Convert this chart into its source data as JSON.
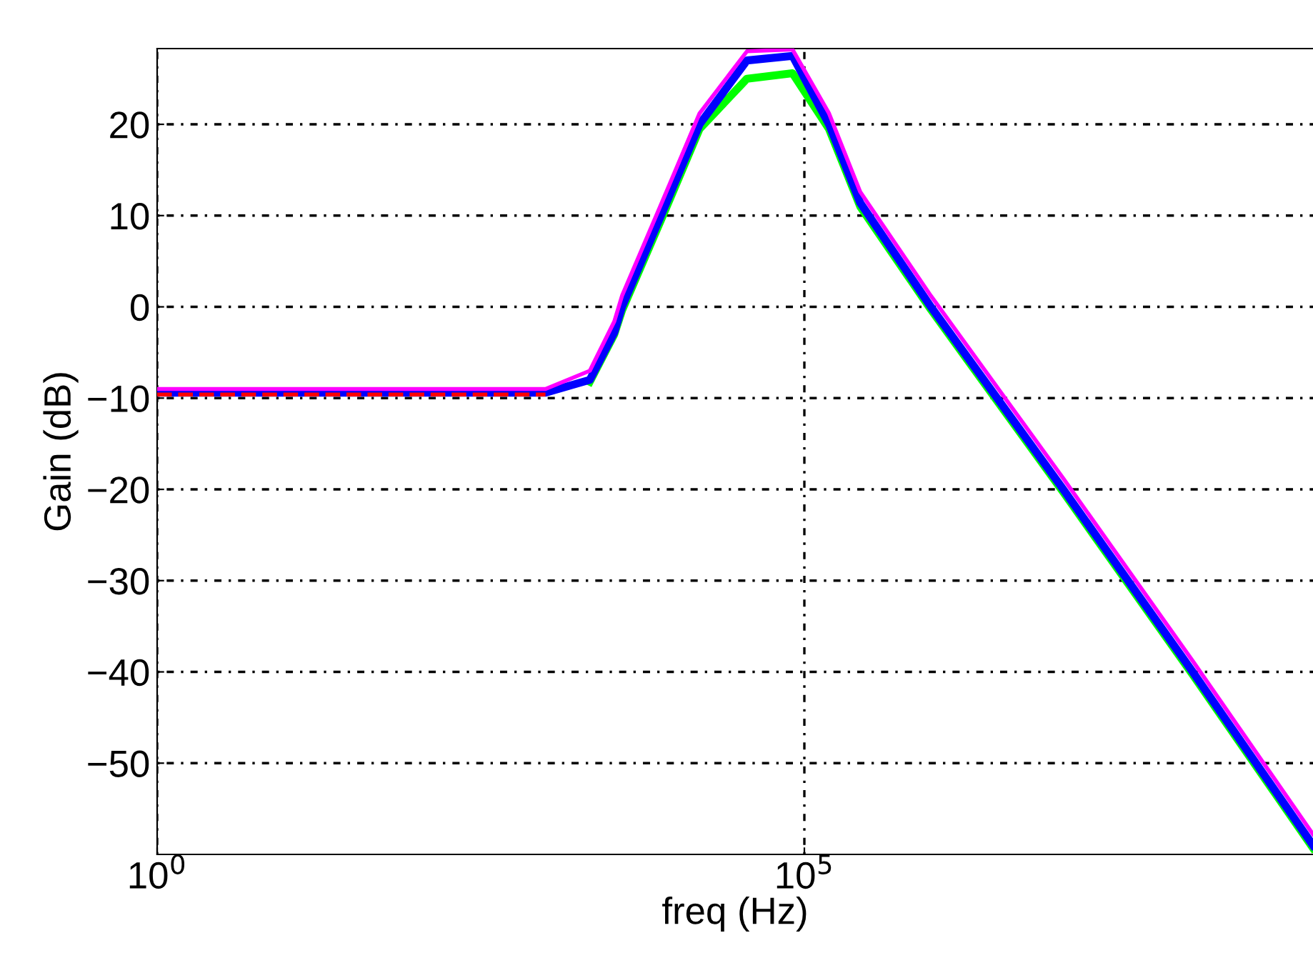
{
  "chart_data": {
    "type": "line",
    "xlabel": "freq (Hz)",
    "ylabel": "Gain (dB)",
    "log": "x",
    "x": [
      1,
      1000,
      2200,
      3400,
      3900,
      7800,
      15500,
      36000,
      81000,
      155000,
      270000,
      950000,
      10000000,
      100000000,
      850000000
    ],
    "series": [
      {
        "color": "#00ff00",
        "values": [
          null,
          null,
          -8.2,
          -3,
          -0.4,
          9.5,
          19.5,
          25,
          25.6,
          19.5,
          11,
          -0.3,
          -20.3,
          -40.3,
          -59.3
        ]
      },
      {
        "color": "#0000ff",
        "values": [
          -9.4,
          -9.4,
          -8,
          -2.8,
          0,
          10,
          20,
          27,
          27.5,
          20,
          11.4,
          0,
          -20,
          -40,
          -59
        ]
      },
      {
        "color": "#ff00ff",
        "values": [
          -9,
          -9,
          -7,
          -1.6,
          1.2,
          11.2,
          21.2,
          28,
          28.2,
          21.2,
          12.6,
          1.2,
          -18.8,
          -38.8,
          -57.8
        ]
      },
      {
        "color": "#ff0000",
        "line_style": "dashed",
        "values": [
          -9.6,
          -9.6,
          null,
          null,
          null,
          null,
          null,
          null,
          null,
          null,
          null,
          null,
          null,
          null,
          null
        ]
      }
    ],
    "xlim": [
      1,
      850000000
    ],
    "xticks": [
      {
        "value": 1,
        "label": "10$^{0}$"
      },
      {
        "value": 100000,
        "label": "10$^{5}$"
      }
    ],
    "ylim": [
      -60,
      28.3
    ],
    "yticks": [
      {
        "value": -50,
        "label": "−50"
      },
      {
        "value": -40,
        "label": "−40"
      },
      {
        "value": -30,
        "label": "−30"
      },
      {
        "value": -20,
        "label": "−20"
      },
      {
        "value": -10,
        "label": "−10"
      },
      0,
      10,
      20
    ],
    "grid": true
  }
}
